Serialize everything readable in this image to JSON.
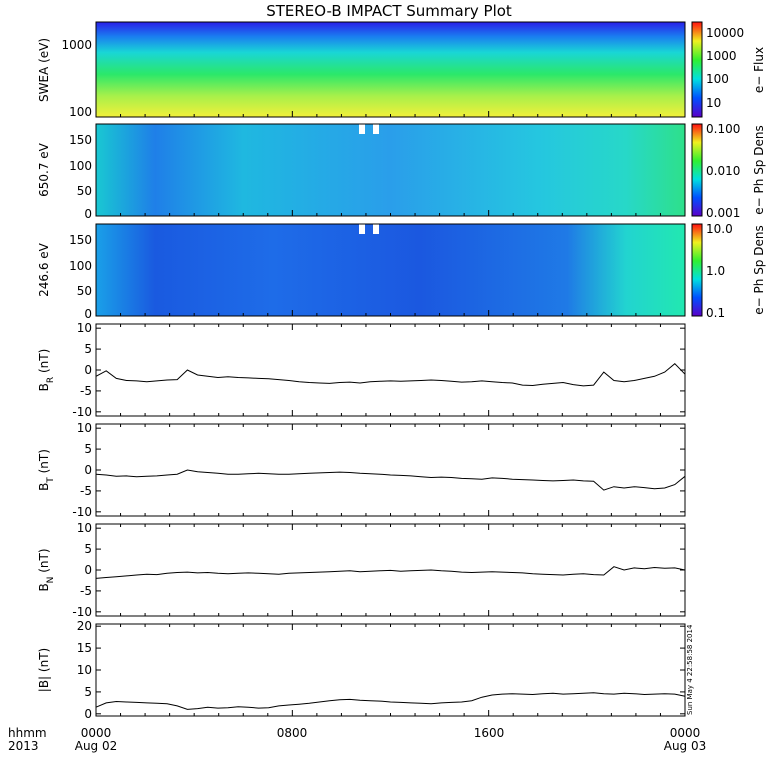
{
  "chart_data": [
    {
      "type": "heatmap",
      "title": "STEREO-B IMPACT Summary Plot",
      "ylabel": "SWEA (eV)",
      "ylim": [
        90,
        2000
      ],
      "yscale": "log",
      "yticks": [
        "1000",
        "100"
      ],
      "colorbar": {
        "label": "e− Flux",
        "ticks": [
          "10000",
          "1000",
          "100",
          "10"
        ],
        "scale": "log"
      }
    },
    {
      "type": "heatmap",
      "ylabel": "650.7 eV",
      "ylim": [
        0,
        180
      ],
      "yticks": [
        "150",
        "100",
        "50",
        "0"
      ],
      "colorbar": {
        "label": "e− Ph Sp Dens",
        "ticks": [
          "0.100",
          "0.010",
          "0.001"
        ],
        "scale": "log"
      }
    },
    {
      "type": "heatmap",
      "ylabel": "246.6 eV",
      "ylim": [
        0,
        180
      ],
      "yticks": [
        "150",
        "100",
        "50",
        "0"
      ],
      "colorbar": {
        "label": "e− Ph Sp Dens",
        "ticks": [
          "10.0",
          "1.0",
          "0.1"
        ],
        "scale": "log"
      }
    },
    {
      "type": "line",
      "ylabel_main": "B",
      "ylabel_sub": "R",
      "ylabel_unit": " (nT)",
      "ylim": [
        -11,
        11
      ],
      "yticks": [
        "10",
        "5",
        "0",
        "-5",
        "-10"
      ],
      "series": [
        {
          "values": [
            -1.5,
            -0.2,
            -2.0,
            -2.5,
            -2.6,
            -2.8,
            -2.6,
            -2.4,
            -2.3,
            0.0,
            -1.2,
            -1.5,
            -1.8,
            -1.6,
            -1.8,
            -1.9,
            -2.0,
            -2.1,
            -2.3,
            -2.5,
            -2.8,
            -3.0,
            -3.1,
            -3.2,
            -3.0,
            -2.9,
            -3.1,
            -2.8,
            -2.7,
            -2.6,
            -2.7,
            -2.6,
            -2.5,
            -2.4,
            -2.5,
            -2.7,
            -2.9,
            -2.8,
            -2.6,
            -2.8,
            -3.0,
            -3.1,
            -3.6,
            -3.7,
            -3.4,
            -3.2,
            -3.0,
            -3.5,
            -3.8,
            -3.6,
            -0.5,
            -2.5,
            -2.8,
            -2.5,
            -2.0,
            -1.5,
            -0.5,
            1.5,
            -1.0
          ]
        }
      ]
    },
    {
      "type": "line",
      "ylabel_main": "B",
      "ylabel_sub": "T",
      "ylabel_unit": " (nT)",
      "ylim": [
        -11,
        11
      ],
      "yticks": [
        "10",
        "5",
        "0",
        "-5",
        "-10"
      ],
      "series": [
        {
          "values": [
            -1.0,
            -1.2,
            -1.5,
            -1.4,
            -1.6,
            -1.5,
            -1.4,
            -1.2,
            -1.0,
            0.0,
            -0.4,
            -0.6,
            -0.8,
            -1.0,
            -1.0,
            -0.9,
            -0.8,
            -0.9,
            -1.0,
            -1.0,
            -0.9,
            -0.8,
            -0.7,
            -0.6,
            -0.5,
            -0.6,
            -0.8,
            -0.9,
            -1.0,
            -1.2,
            -1.3,
            -1.4,
            -1.6,
            -1.8,
            -1.7,
            -1.8,
            -2.0,
            -2.1,
            -2.2,
            -1.9,
            -2.0,
            -2.2,
            -2.3,
            -2.4,
            -2.5,
            -2.6,
            -2.5,
            -2.4,
            -2.6,
            -2.7,
            -4.8,
            -4.0,
            -4.3,
            -4.0,
            -4.2,
            -4.5,
            -4.3,
            -3.5,
            -1.5
          ]
        }
      ]
    },
    {
      "type": "line",
      "ylabel_main": "B",
      "ylabel_sub": "N",
      "ylabel_unit": " (nT)",
      "ylim": [
        -11,
        11
      ],
      "yticks": [
        "10",
        "5",
        "0",
        "-5",
        "-10"
      ],
      "series": [
        {
          "values": [
            -2.0,
            -1.8,
            -1.6,
            -1.4,
            -1.2,
            -1.0,
            -1.1,
            -0.8,
            -0.6,
            -0.5,
            -0.7,
            -0.6,
            -0.8,
            -0.9,
            -0.8,
            -0.7,
            -0.8,
            -0.9,
            -1.0,
            -0.8,
            -0.7,
            -0.6,
            -0.5,
            -0.4,
            -0.3,
            -0.2,
            -0.4,
            -0.3,
            -0.2,
            -0.1,
            -0.3,
            -0.2,
            -0.1,
            0.0,
            -0.2,
            -0.3,
            -0.5,
            -0.6,
            -0.5,
            -0.4,
            -0.5,
            -0.6,
            -0.7,
            -0.9,
            -1.0,
            -1.1,
            -1.2,
            -1.0,
            -0.9,
            -1.1,
            -1.2,
            0.8,
            0.0,
            0.5,
            0.3,
            0.6,
            0.4,
            0.5,
            0.0
          ]
        }
      ]
    },
    {
      "type": "line",
      "ylabel_main": "|B| (nT)",
      "ylim": [
        -0.5,
        20.5
      ],
      "yticks": [
        "20",
        "15",
        "10",
        "5",
        "0"
      ],
      "series": [
        {
          "values": [
            1.5,
            2.5,
            2.8,
            2.7,
            2.6,
            2.5,
            2.4,
            2.3,
            1.8,
            1.0,
            1.2,
            1.5,
            1.3,
            1.4,
            1.6,
            1.5,
            1.3,
            1.4,
            1.8,
            2.0,
            2.2,
            2.4,
            2.7,
            3.0,
            3.2,
            3.3,
            3.1,
            3.0,
            2.9,
            2.7,
            2.6,
            2.5,
            2.4,
            2.3,
            2.5,
            2.6,
            2.7,
            3.0,
            3.8,
            4.3,
            4.5,
            4.6,
            4.5,
            4.4,
            4.6,
            4.7,
            4.5,
            4.6,
            4.7,
            4.8,
            4.6,
            4.5,
            4.7,
            4.6,
            4.4,
            4.5,
            4.6,
            4.5,
            4.0
          ]
        }
      ]
    }
  ],
  "x_axis": {
    "row_label_top": "hhmm",
    "row_label_bottom": "2013",
    "ticks": [
      {
        "time": "0000",
        "date": "Aug 02"
      },
      {
        "time": "0800",
        "date": ""
      },
      {
        "time": "1600",
        "date": ""
      },
      {
        "time": "0000",
        "date": "Aug 03"
      }
    ]
  },
  "timestamp": "Sun May  4 22:58:58 2014"
}
